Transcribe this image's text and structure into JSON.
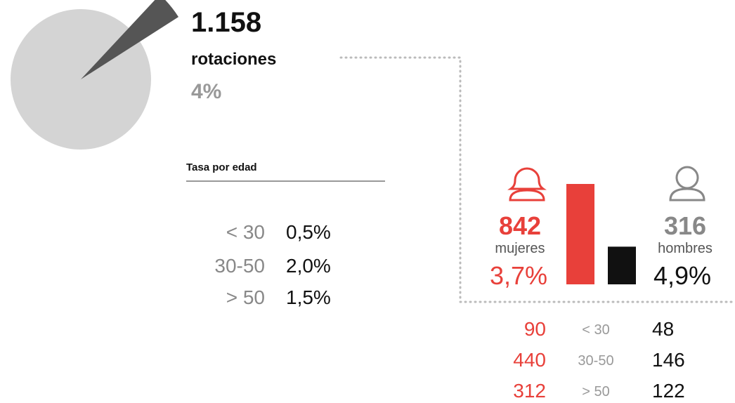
{
  "summary": {
    "count": "1.158",
    "label": "rotaciones"
  },
  "chart_data": [
    {
      "type": "pie",
      "values": [
        4
      ],
      "value_labels": [
        "4%"
      ],
      "color": "#555555",
      "background": "#d4d4d4"
    },
    {
      "type": "bar",
      "categories": [
        "mujeres",
        "hombres"
      ],
      "values": [
        842,
        316
      ],
      "colors": [
        "#e8403a",
        "#111111"
      ],
      "rates": [
        "3,7%",
        "4,9%"
      ]
    }
  ],
  "age_rate": {
    "title": "Tasa por edad",
    "rows": [
      [
        "< 30",
        "0,5%"
      ],
      [
        "30-50",
        "2,0%"
      ],
      [
        "> 50",
        "1,5%"
      ]
    ]
  },
  "age_breakdown": {
    "rows": [
      [
        "90",
        "< 30",
        "48"
      ],
      [
        "440",
        "30-50",
        "146"
      ],
      [
        "312",
        "> 50",
        "122"
      ]
    ]
  }
}
